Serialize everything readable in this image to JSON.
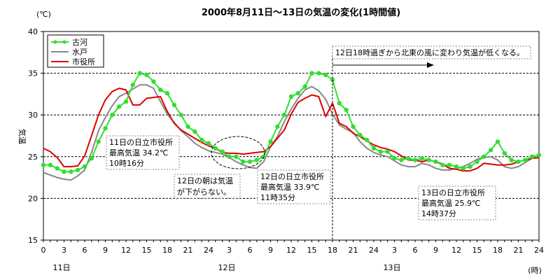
{
  "chart_data": {
    "type": "line",
    "title": "2000年8月11日～13日の気温の変化(1時間値)",
    "ylabel": "気温",
    "y_unit": "(℃)",
    "x_unit": "(時)",
    "ylim": [
      15,
      40
    ],
    "y_ticks": [
      "15",
      "20",
      "25",
      "30",
      "35",
      "40"
    ],
    "x_ticks": [
      "0",
      "3",
      "6",
      "9",
      "12",
      "15",
      "18",
      "21",
      "24",
      "3",
      "6",
      "9",
      "12",
      "15",
      "18",
      "21",
      "24",
      "3",
      "6",
      "9",
      "12",
      "15",
      "18",
      "21",
      "24"
    ],
    "day_labels": [
      "11日",
      "12日",
      "13日"
    ],
    "grid": true,
    "legend_position": "top-left",
    "hours": [
      0,
      1,
      2,
      3,
      4,
      5,
      6,
      7,
      8,
      9,
      10,
      11,
      12,
      13,
      14,
      15,
      16,
      17,
      18,
      19,
      20,
      21,
      22,
      23,
      24,
      25,
      26,
      27,
      28,
      29,
      30,
      31,
      32,
      33,
      34,
      35,
      36,
      37,
      38,
      39,
      40,
      41,
      42,
      43,
      44,
      45,
      46,
      47,
      48,
      49,
      50,
      51,
      52,
      53,
      54,
      55,
      56,
      57,
      58,
      59,
      60,
      61,
      62,
      63,
      64,
      65,
      66,
      67,
      68,
      69,
      70,
      71,
      72
    ],
    "series": [
      {
        "name": "古河",
        "color": "#33dd33",
        "marker": true,
        "values": [
          24.0,
          24.0,
          23.6,
          23.2,
          23.2,
          23.4,
          23.8,
          24.8,
          26.8,
          28.4,
          30.0,
          31.0,
          31.6,
          33.6,
          35.0,
          34.8,
          34.0,
          33.0,
          32.6,
          31.2,
          30.0,
          28.6,
          28.0,
          27.0,
          26.6,
          26.0,
          25.6,
          25.0,
          25.0,
          24.4,
          24.4,
          24.6,
          25.0,
          26.8,
          28.6,
          30.0,
          32.2,
          32.6,
          33.4,
          35.0,
          35.0,
          34.8,
          34.2,
          31.4,
          30.6,
          28.6,
          27.6,
          27.0,
          26.0,
          25.6,
          25.6,
          24.8,
          24.6,
          24.8,
          24.6,
          24.8,
          24.6,
          24.4,
          24.0,
          24.0,
          23.8,
          23.6,
          23.8,
          24.4,
          25.0,
          25.8,
          26.8,
          25.4,
          24.6,
          24.4,
          24.6,
          25.0,
          25.2
        ]
      },
      {
        "name": "水戸",
        "color": "#888888",
        "marker": false,
        "values": [
          23.1,
          22.8,
          22.5,
          22.3,
          22.2,
          22.7,
          23.4,
          25.5,
          28.1,
          29.7,
          31.1,
          32.2,
          32.6,
          33.1,
          33.6,
          33.6,
          33.2,
          31.6,
          30.1,
          29.1,
          28.1,
          27.4,
          26.6,
          26.1,
          25.7,
          25.5,
          25.3,
          24.9,
          24.4,
          24.0,
          23.7,
          23.6,
          24.4,
          26.2,
          27.4,
          29.2,
          30.7,
          32.0,
          33.0,
          33.4,
          32.9,
          31.9,
          30.1,
          28.8,
          28.3,
          27.9,
          26.8,
          26.0,
          25.5,
          25.2,
          25.0,
          24.5,
          24.0,
          23.8,
          23.8,
          24.2,
          24.0,
          23.6,
          23.4,
          23.4,
          23.6,
          23.8,
          24.2,
          24.7,
          24.9,
          25.0,
          24.6,
          23.8,
          23.6,
          23.8,
          24.3,
          24.8,
          24.9
        ]
      },
      {
        "name": "市役所",
        "color": "#dd0000",
        "marker": false,
        "values": [
          26.0,
          25.6,
          24.9,
          23.8,
          23.8,
          23.9,
          25.1,
          27.5,
          30.0,
          31.8,
          32.8,
          33.2,
          33.0,
          31.2,
          31.2,
          32.0,
          32.1,
          32.2,
          30.4,
          29.0,
          28.2,
          27.7,
          27.2,
          26.7,
          26.3,
          26.0,
          25.5,
          25.4,
          25.4,
          25.3,
          25.4,
          25.5,
          25.6,
          26.2,
          27.2,
          28.2,
          30.1,
          31.5,
          32.0,
          32.4,
          32.2,
          29.8,
          31.4,
          29.0,
          28.6,
          27.8,
          27.4,
          26.9,
          26.4,
          26.1,
          25.9,
          25.6,
          25.1,
          24.6,
          24.6,
          24.4,
          24.6,
          24.4,
          24.1,
          23.6,
          23.5,
          23.3,
          23.3,
          23.6,
          24.2,
          24.1,
          24.0,
          24.0,
          24.1,
          24.4,
          24.6,
          24.8,
          24.9
        ]
      }
    ],
    "annotations": [
      {
        "id": "a11",
        "lines": [
          "11日の日立市役所",
          "最高気温 34.2℃",
          "10時16分"
        ]
      },
      {
        "id": "a12",
        "lines": [
          "12日の日立市役所",
          "最高気温 33.9℃",
          "11時35分"
        ]
      },
      {
        "id": "a13",
        "lines": [
          "13日の日立市役所",
          "最高気温 25.9℃",
          "14時37分"
        ]
      },
      {
        "id": "amorning",
        "lines": [
          "12日の朝は気温",
          "が下がらない。"
        ]
      },
      {
        "id": "awind",
        "lines": [
          "12日18時過ぎから北東の風に変わり気温が低くなる。"
        ]
      }
    ]
  }
}
